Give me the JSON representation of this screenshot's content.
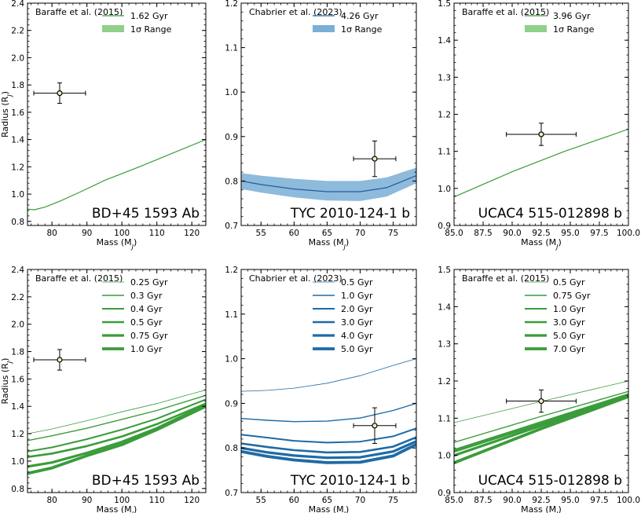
{
  "chart_data": [
    {
      "type": "line",
      "panel_label": "BD+45 1593 Ab",
      "source": "Baraffe et al. (2015)",
      "xlabel": "Mass (M",
      "xlabel_sub": "J",
      "xlabel_end": ")",
      "ylabel": "Radius (R",
      "ylabel_sub": "J",
      "ylabel_end": ")",
      "xlim": [
        73,
        124
      ],
      "ylim": [
        0.77,
        2.4
      ],
      "xticks": [
        80,
        90,
        100,
        110,
        120
      ],
      "xtick_labels": [
        "80",
        "90",
        "100",
        "110",
        "120"
      ],
      "yticks": [
        0.8,
        1.0,
        1.2,
        1.4,
        1.6,
        1.8,
        2.0,
        2.2,
        2.4
      ],
      "ytick_labels": [
        "0.8",
        "1.0",
        "1.2",
        "1.4",
        "1.6",
        "1.8",
        "2.0",
        "2.2",
        "2.4"
      ],
      "legend": [
        "1.62 Gyr",
        "1σ Range"
      ],
      "color": "#3a9c3a",
      "band_color": "#8fd08a",
      "series": [
        {
          "name": "1.62 Gyr",
          "width": 1.2,
          "x": [
            73,
            75,
            78,
            82,
            88,
            95,
            105,
            115,
            124
          ],
          "y": [
            0.89,
            0.885,
            0.905,
            0.945,
            1.015,
            1.1,
            1.2,
            1.305,
            1.4
          ]
        }
      ],
      "point": {
        "x": 82.2,
        "y": 1.74,
        "xerr": 7.4,
        "yerr": 0.075
      }
    },
    {
      "type": "line",
      "panel_label": "TYC 2010-124-1 b",
      "source": "Chabrier et al. (2023)",
      "xlabel": "Mass (M",
      "xlabel_sub": "J",
      "xlabel_end": ")",
      "ylabel": "",
      "xlim": [
        52,
        78.5
      ],
      "ylim": [
        0.7,
        1.2
      ],
      "xticks": [
        55,
        60,
        65,
        70,
        75
      ],
      "xtick_labels": [
        "55",
        "60",
        "65",
        "70",
        "75"
      ],
      "yticks": [
        0.7,
        0.8,
        0.9,
        1.0,
        1.1,
        1.2
      ],
      "ytick_labels": [
        "0.7",
        "0.8",
        "0.9",
        "1.0",
        "1.1",
        "1.2"
      ],
      "legend": [
        "4.26 Gyr",
        "1σ Range"
      ],
      "color": "#1f5f9c",
      "band_color": "#7aaed6",
      "series": [
        {
          "name": "4.26 Gyr",
          "width": 1.2,
          "x": [
            52,
            55,
            60,
            65,
            70,
            74,
            78.5
          ],
          "y": [
            0.8,
            0.792,
            0.782,
            0.776,
            0.776,
            0.785,
            0.812
          ]
        }
      ],
      "band": {
        "x": [
          52,
          55,
          60,
          65,
          70,
          74,
          78.5
        ],
        "upper": [
          0.818,
          0.812,
          0.805,
          0.8,
          0.8,
          0.808,
          0.83
        ],
        "lower": [
          0.782,
          0.774,
          0.763,
          0.756,
          0.755,
          0.765,
          0.795
        ]
      },
      "point": {
        "x": 72.2,
        "y": 0.85,
        "xerr": 3.2,
        "yerr": 0.04
      }
    },
    {
      "type": "line",
      "panel_label": "UCAC4 515-012898 b",
      "source": "Baraffe et al. (2015)",
      "xlabel": "Mass (M",
      "xlabel_sub": "J",
      "xlabel_end": ")",
      "ylabel": "",
      "xlim": [
        85,
        100
      ],
      "ylim": [
        0.9,
        1.5
      ],
      "xticks": [
        85,
        87.5,
        90,
        92.5,
        95,
        97.5,
        100
      ],
      "xtick_labels": [
        "85.0",
        "87.5",
        "90.0",
        "92.5",
        "95.0",
        "97.5",
        "100.0"
      ],
      "yticks": [
        0.9,
        1.0,
        1.1,
        1.2,
        1.3,
        1.4,
        1.5
      ],
      "ytick_labels": [
        "0.9",
        "1.0",
        "1.1",
        "1.2",
        "1.3",
        "1.4",
        "1.5"
      ],
      "legend": [
        "3.96 Gyr",
        "1σ Range"
      ],
      "color": "#3a9c3a",
      "band_color": "#8fd08a",
      "series": [
        {
          "name": "3.96 Gyr",
          "width": 1.2,
          "x": [
            85,
            90,
            94.5,
            100
          ],
          "y": [
            0.977,
            1.045,
            1.1,
            1.16
          ]
        }
      ],
      "point": {
        "x": 92.5,
        "y": 1.146,
        "xerr": 3.0,
        "yerr": 0.03
      }
    },
    {
      "type": "line",
      "panel_label": "BD+45 1593 Ab",
      "source": "Baraffe et al. (2015)",
      "xlabel": "Mass (M",
      "xlabel_sub": "J",
      "xlabel_end": ")",
      "ylabel": "Radius (R",
      "ylabel_sub": "J",
      "ylabel_end": ")",
      "xlim": [
        73,
        124
      ],
      "ylim": [
        0.77,
        2.4
      ],
      "xticks": [
        80,
        90,
        100,
        110,
        120
      ],
      "xtick_labels": [
        "80",
        "90",
        "100",
        "110",
        "120"
      ],
      "yticks": [
        0.8,
        1.0,
        1.2,
        1.4,
        1.6,
        1.8,
        2.0,
        2.2,
        2.4
      ],
      "ytick_labels": [
        "0.8",
        "1.0",
        "1.2",
        "1.4",
        "1.6",
        "1.8",
        "2.0",
        "2.2",
        "2.4"
      ],
      "legend": [
        "0.25 Gyr",
        "0.3 Gyr",
        "0.4 Gyr",
        "0.5 Gyr",
        "0.75 Gyr",
        "1.0 Gyr"
      ],
      "color": "#3a9c3a",
      "series": [
        {
          "name": "0.25 Gyr",
          "width": 0.8,
          "x": [
            73,
            80,
            90,
            100,
            110,
            124
          ],
          "y": [
            1.2,
            1.235,
            1.295,
            1.36,
            1.42,
            1.52
          ]
        },
        {
          "name": "0.3 Gyr",
          "width": 1.4,
          "x": [
            73,
            80,
            90,
            100,
            110,
            124
          ],
          "y": [
            1.15,
            1.185,
            1.24,
            1.305,
            1.37,
            1.48
          ]
        },
        {
          "name": "0.4 Gyr",
          "width": 2.0,
          "x": [
            73,
            80,
            90,
            100,
            110,
            124
          ],
          "y": [
            1.07,
            1.1,
            1.16,
            1.23,
            1.31,
            1.45
          ]
        },
        {
          "name": "0.5 Gyr",
          "width": 2.6,
          "x": [
            73,
            80,
            90,
            100,
            110,
            124
          ],
          "y": [
            1.03,
            1.055,
            1.11,
            1.18,
            1.27,
            1.42
          ]
        },
        {
          "name": "0.75 Gyr",
          "width": 3.2,
          "x": [
            73,
            80,
            90,
            100,
            110,
            124
          ],
          "y": [
            0.96,
            0.99,
            1.06,
            1.14,
            1.24,
            1.41
          ]
        },
        {
          "name": "1.0 Gyr",
          "width": 3.8,
          "x": [
            73,
            80,
            90,
            100,
            110,
            124
          ],
          "y": [
            0.91,
            0.95,
            1.04,
            1.12,
            1.23,
            1.4
          ]
        }
      ],
      "point": {
        "x": 82.2,
        "y": 1.74,
        "xerr": 7.4,
        "yerr": 0.075
      }
    },
    {
      "type": "line",
      "panel_label": "TYC 2010-124-1 b",
      "source": "Chabrier et al. (2023)",
      "xlabel": "Mass (M",
      "xlabel_sub": "J",
      "xlabel_end": ")",
      "ylabel": "",
      "xlim": [
        52,
        78.5
      ],
      "ylim": [
        0.7,
        1.2
      ],
      "xticks": [
        55,
        60,
        65,
        70,
        75
      ],
      "xtick_labels": [
        "55",
        "60",
        "65",
        "70",
        "75"
      ],
      "yticks": [
        0.7,
        0.8,
        0.9,
        1.0,
        1.1,
        1.2
      ],
      "ytick_labels": [
        "0.7",
        "0.8",
        "0.9",
        "1.0",
        "1.1",
        "1.2"
      ],
      "legend": [
        "0.5 Gyr",
        "1.0 Gyr",
        "2.0 Gyr",
        "3.0 Gyr",
        "4.0 Gyr",
        "5.0 Gyr"
      ],
      "color": "#1f6aa5",
      "series": [
        {
          "name": "0.5 Gyr",
          "width": 0.8,
          "x": [
            52,
            56,
            60,
            65,
            70,
            75,
            78.5
          ],
          "y": [
            0.927,
            0.929,
            0.934,
            0.945,
            0.962,
            0.985,
            1.0
          ]
        },
        {
          "name": "1.0 Gyr",
          "width": 1.4,
          "x": [
            52,
            56,
            60,
            65,
            70,
            75,
            78.5
          ],
          "y": [
            0.866,
            0.862,
            0.859,
            0.86,
            0.867,
            0.884,
            0.9
          ]
        },
        {
          "name": "2.0 Gyr",
          "width": 2.0,
          "x": [
            52,
            56,
            60,
            65,
            70,
            75,
            78.5
          ],
          "y": [
            0.83,
            0.823,
            0.816,
            0.812,
            0.814,
            0.826,
            0.844
          ]
        },
        {
          "name": "3.0 Gyr",
          "width": 2.6,
          "x": [
            52,
            56,
            60,
            65,
            70,
            75,
            78.5
          ],
          "y": [
            0.81,
            0.802,
            0.795,
            0.79,
            0.791,
            0.803,
            0.824
          ]
        },
        {
          "name": "4.0 Gyr",
          "width": 3.2,
          "x": [
            52,
            56,
            60,
            65,
            70,
            75,
            78.5
          ],
          "y": [
            0.8,
            0.79,
            0.783,
            0.778,
            0.779,
            0.792,
            0.815
          ]
        },
        {
          "name": "5.0 Gyr",
          "width": 3.8,
          "x": [
            52,
            56,
            60,
            65,
            70,
            75,
            78.5
          ],
          "y": [
            0.792,
            0.781,
            0.773,
            0.767,
            0.768,
            0.782,
            0.808
          ]
        }
      ],
      "point": {
        "x": 72.2,
        "y": 0.85,
        "xerr": 3.2,
        "yerr": 0.04
      }
    },
    {
      "type": "line",
      "panel_label": "UCAC4 515-012898 b",
      "source": "Baraffe et al. (2015)",
      "xlabel": "Mass (M",
      "xlabel_sub": "J",
      "xlabel_end": ")",
      "ylabel": "",
      "xlim": [
        85,
        100
      ],
      "ylim": [
        0.9,
        1.5
      ],
      "xticks": [
        85,
        87.5,
        90,
        92.5,
        95,
        97.5,
        100
      ],
      "xtick_labels": [
        "85.0",
        "87.5",
        "90.0",
        "92.5",
        "95.0",
        "97.5",
        "100.0"
      ],
      "yticks": [
        0.9,
        1.0,
        1.1,
        1.2,
        1.3,
        1.4,
        1.5
      ],
      "ytick_labels": [
        "0.9",
        "1.0",
        "1.1",
        "1.2",
        "1.3",
        "1.4",
        "1.5"
      ],
      "legend": [
        "0.5 Gyr",
        "0.75 Gyr",
        "1.0 Gyr",
        "3.0 Gyr",
        "5.0 Gyr",
        "7.0 Gyr"
      ],
      "color": "#3a9c3a",
      "series": [
        {
          "name": "0.5 Gyr",
          "width": 0.8,
          "x": [
            85,
            92.5,
            100
          ],
          "y": [
            1.088,
            1.145,
            1.2
          ]
        },
        {
          "name": "0.75 Gyr",
          "width": 1.4,
          "x": [
            85,
            92.5,
            100
          ],
          "y": [
            1.035,
            1.105,
            1.172
          ]
        },
        {
          "name": "1.0 Gyr",
          "width": 2.0,
          "x": [
            85,
            92.5,
            100
          ],
          "y": [
            1.015,
            1.09,
            1.165
          ]
        },
        {
          "name": "3.0 Gyr",
          "width": 2.6,
          "x": [
            85,
            92.5,
            100
          ],
          "y": [
            1.01,
            1.085,
            1.162
          ]
        },
        {
          "name": "5.0 Gyr",
          "width": 3.2,
          "x": [
            85,
            92.5,
            100
          ],
          "y": [
            1.0,
            1.08,
            1.16
          ]
        },
        {
          "name": "7.0 Gyr",
          "width": 3.8,
          "x": [
            85,
            92.5,
            100
          ],
          "y": [
            0.98,
            1.072,
            1.158
          ]
        }
      ],
      "point": {
        "x": 92.5,
        "y": 1.146,
        "xerr": 3.0,
        "yerr": 0.03
      }
    }
  ]
}
